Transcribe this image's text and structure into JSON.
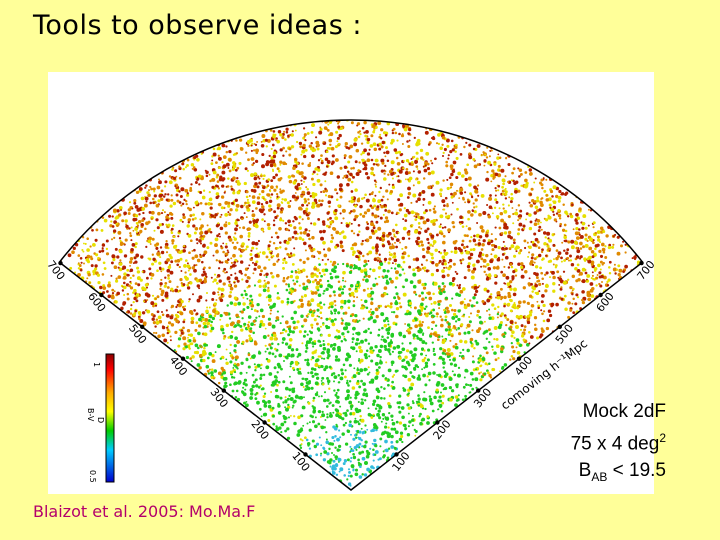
{
  "slide": {
    "title": "Tools to observe ideas :",
    "citation": "Blaizot et al. 2005: Mo.Ma.F"
  },
  "figure": {
    "left_axis_ticks": [
      "700",
      "600",
      "500",
      "400",
      "300",
      "200",
      "100"
    ],
    "right_axis_ticks": [
      "700",
      "600",
      "500",
      "400",
      "300",
      "200",
      "100"
    ],
    "right_axis_label": "comoving h⁻¹Mpc",
    "colorbar_top_label": "1",
    "colorbar_mid_label": "B-V",
    "colorbar_mid_label2": "D",
    "colorbar_bottom_label": "0.5"
  },
  "caption": {
    "line1": "Mock 2dF",
    "line2_main": "75 x 4 deg",
    "line2_sup": "2",
    "line3_main": "B",
    "line3_sub": "AB",
    "line3_rest": " < 19.5"
  },
  "colors": {
    "background": "#ffff99",
    "citation": "#b3006b",
    "galaxy_red": "#b32000",
    "galaxy_orange": "#e08a00",
    "galaxy_yellow": "#e6e000",
    "galaxy_green": "#22cc22",
    "galaxy_cyan": "#33bbdd"
  }
}
